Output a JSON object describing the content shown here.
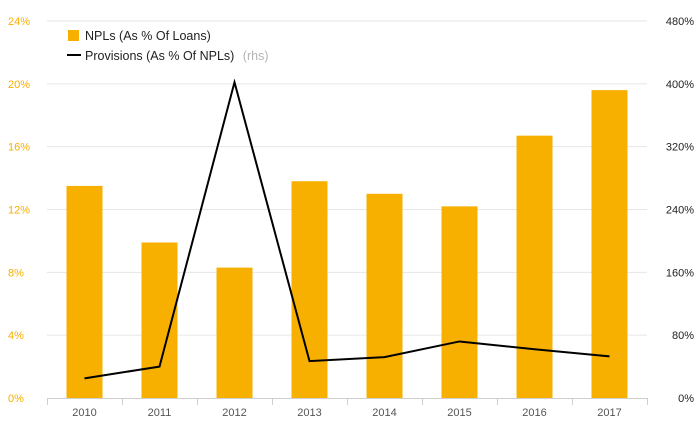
{
  "chart_data": {
    "type": "bar+line",
    "categories": [
      "2010",
      "2011",
      "2012",
      "2013",
      "2014",
      "2015",
      "2016",
      "2017"
    ],
    "series": [
      {
        "name": "NPLs (As % Of Loans)",
        "type": "bar",
        "axis": "left",
        "color": "#F7AF00",
        "values": [
          13.5,
          9.9,
          8.3,
          13.8,
          13.0,
          12.2,
          16.7,
          19.6
        ]
      },
      {
        "name": "Provisions (As % Of NPLs)",
        "type": "line",
        "axis": "right",
        "color": "#000000",
        "values": [
          25,
          40,
          402,
          47,
          52,
          72,
          62,
          53
        ]
      }
    ],
    "legend": {
      "items": [
        {
          "label": "NPLs (As % Of Loans)",
          "suffix": ""
        },
        {
          "label": "Provisions (As % Of NPLs)",
          "suffix": "(rhs)"
        }
      ],
      "placement": "top-left"
    },
    "y_left": {
      "ylim": [
        0,
        24
      ],
      "ticks": [
        0,
        4,
        8,
        12,
        16,
        20,
        24
      ],
      "tick_labels": [
        "0%",
        "4%",
        "8%",
        "12%",
        "16%",
        "20%",
        "24%"
      ],
      "label_color": "#F7AF00"
    },
    "y_right": {
      "ylim": [
        0,
        480
      ],
      "ticks": [
        0,
        80,
        160,
        240,
        320,
        400,
        480
      ],
      "tick_labels": [
        "0%",
        "80%",
        "160%",
        "240%",
        "320%",
        "400%",
        "480%"
      ]
    },
    "grid": true
  }
}
